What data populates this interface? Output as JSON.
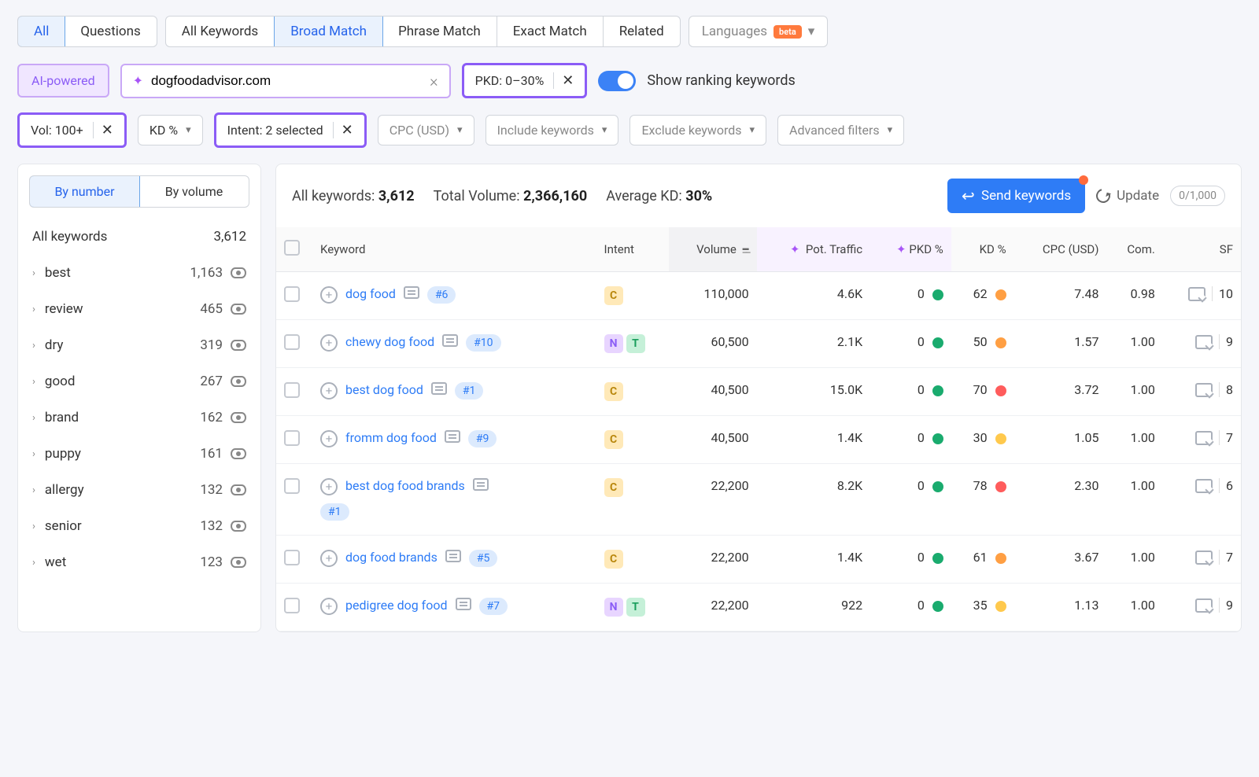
{
  "tabs_group1": [
    {
      "label": "All",
      "active": true
    },
    {
      "label": "Questions",
      "active": false
    }
  ],
  "tabs_group2": [
    {
      "label": "All Keywords",
      "active": false
    },
    {
      "label": "Broad Match",
      "active": true
    },
    {
      "label": "Phrase Match",
      "active": false
    },
    {
      "label": "Exact Match",
      "active": false
    },
    {
      "label": "Related",
      "active": false
    }
  ],
  "languages_label": "Languages",
  "beta_label": "beta",
  "ai_powered_label": "AI-powered",
  "domain_value": "dogfoodadvisor.com",
  "pkd_filter": "PKD: 0–30%",
  "toggle_label": "Show ranking keywords",
  "filters2": {
    "vol": "Vol: 100+",
    "kd": "KD %",
    "intent": "Intent: 2 selected",
    "cpc": "CPC (USD)",
    "include": "Include keywords",
    "exclude": "Exclude keywords",
    "advanced": "Advanced filters"
  },
  "side_tabs": {
    "by_number": "By number",
    "by_volume": "By volume"
  },
  "side_header": {
    "label": "All keywords",
    "count": "3,612"
  },
  "side_items": [
    {
      "label": "best",
      "count": "1,163"
    },
    {
      "label": "review",
      "count": "465"
    },
    {
      "label": "dry",
      "count": "319"
    },
    {
      "label": "good",
      "count": "267"
    },
    {
      "label": "brand",
      "count": "162"
    },
    {
      "label": "puppy",
      "count": "161"
    },
    {
      "label": "allergy",
      "count": "132"
    },
    {
      "label": "senior",
      "count": "132"
    },
    {
      "label": "wet",
      "count": "123"
    }
  ],
  "stats": {
    "all_kw_label": "All keywords: ",
    "all_kw_val": "3,612",
    "total_vol_label": "Total Volume: ",
    "total_vol_val": "2,366,160",
    "avg_kd_label": "Average KD: ",
    "avg_kd_val": "30%"
  },
  "send_label": "Send keywords",
  "update_label": "Update",
  "update_count": "0/1,000",
  "columns": {
    "keyword": "Keyword",
    "intent": "Intent",
    "volume": "Volume",
    "pot_traffic": "Pot. Traffic",
    "pkd": "PKD %",
    "kd": "KD %",
    "cpc": "CPC (USD)",
    "com": "Com.",
    "sf": "SF"
  },
  "colors": {
    "green": "#1aab6e",
    "orange": "#ff9f43",
    "red": "#ff5c5c",
    "yellow": "#ffc94d"
  },
  "rows": [
    {
      "kw": "dog food",
      "rank": "#6",
      "intents": [
        "C"
      ],
      "vol": "110,000",
      "pot": "4.6K",
      "pkd": "0",
      "pkd_color": "#1aab6e",
      "kd": "62",
      "kd_color": "#ff9f43",
      "cpc": "7.48",
      "com": "0.98",
      "sf": "10"
    },
    {
      "kw": "chewy dog food",
      "rank": "#10",
      "intents": [
        "N",
        "T"
      ],
      "vol": "60,500",
      "pot": "2.1K",
      "pkd": "0",
      "pkd_color": "#1aab6e",
      "kd": "50",
      "kd_color": "#ff9f43",
      "cpc": "1.57",
      "com": "1.00",
      "sf": "9"
    },
    {
      "kw": "best dog food",
      "rank": "#1",
      "intents": [
        "C"
      ],
      "vol": "40,500",
      "pot": "15.0K",
      "pkd": "0",
      "pkd_color": "#1aab6e",
      "kd": "70",
      "kd_color": "#ff5c5c",
      "cpc": "3.72",
      "com": "1.00",
      "sf": "8"
    },
    {
      "kw": "fromm dog food",
      "rank": "#9",
      "intents": [
        "C"
      ],
      "vol": "40,500",
      "pot": "1.4K",
      "pkd": "0",
      "pkd_color": "#1aab6e",
      "kd": "30",
      "kd_color": "#ffc94d",
      "cpc": "1.05",
      "com": "1.00",
      "sf": "7"
    },
    {
      "kw": "best dog food brands",
      "rank": "#1",
      "intents": [
        "C"
      ],
      "vol": "22,200",
      "pot": "8.2K",
      "pkd": "0",
      "pkd_color": "#1aab6e",
      "kd": "78",
      "kd_color": "#ff5c5c",
      "cpc": "2.30",
      "com": "1.00",
      "sf": "6"
    },
    {
      "kw": "dog food brands",
      "rank": "#5",
      "intents": [
        "C"
      ],
      "vol": "22,200",
      "pot": "1.4K",
      "pkd": "0",
      "pkd_color": "#1aab6e",
      "kd": "61",
      "kd_color": "#ff9f43",
      "cpc": "3.67",
      "com": "1.00",
      "sf": "7"
    },
    {
      "kw": "pedigree dog food",
      "rank": "#7",
      "intents": [
        "N",
        "T"
      ],
      "vol": "22,200",
      "pot": "922",
      "pkd": "0",
      "pkd_color": "#1aab6e",
      "kd": "35",
      "kd_color": "#ffc94d",
      "cpc": "1.13",
      "com": "1.00",
      "sf": "9"
    }
  ]
}
